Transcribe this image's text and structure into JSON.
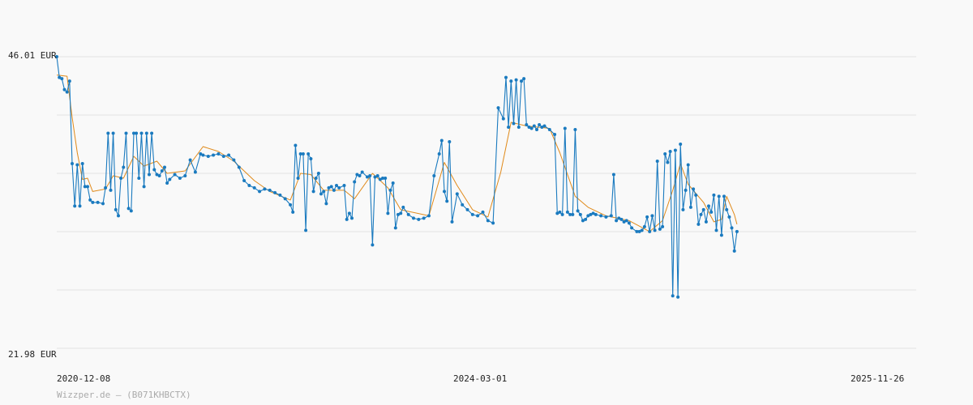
{
  "colors": {
    "background": "#f9f9f9",
    "price_line": "#1a7abf",
    "average_line": "#e08a1a",
    "grid": "#e3e3e3",
    "credit": "#aaaaaa"
  },
  "credit": "Wizzper.de – (B071KHBCTX)",
  "chart_data": {
    "type": "line",
    "title": "",
    "xlabel": "",
    "ylabel": "",
    "currency": "EUR",
    "ylim": [
      21.98,
      46.01
    ],
    "y_labels": [
      "46.01 EUR",
      "21.98 EUR"
    ],
    "x_ticks": [
      "2020-12-08",
      "2024-03-01",
      "2025-11-26"
    ],
    "x_range": [
      "2020-12-08",
      "2027-05-10"
    ],
    "grid": true,
    "legend": "none",
    "series": [
      {
        "key": "price",
        "markers": true,
        "points": [
          [
            "2020-12-08",
            46.01
          ],
          [
            "2020-12-15",
            44.3
          ],
          [
            "2020-12-22",
            44.2
          ],
          [
            "2020-12-29",
            43.3
          ],
          [
            "2021-01-05",
            43.1
          ],
          [
            "2021-01-12",
            44.0
          ],
          [
            "2021-01-19",
            37.2
          ],
          [
            "2021-01-26",
            33.7
          ],
          [
            "2021-02-02",
            37.1
          ],
          [
            "2021-02-09",
            33.7
          ],
          [
            "2021-02-16",
            37.2
          ],
          [
            "2021-02-23",
            35.3
          ],
          [
            "2021-03-02",
            35.3
          ],
          [
            "2021-03-09",
            34.2
          ],
          [
            "2021-03-16",
            34.0
          ],
          [
            "2021-03-30",
            34.0
          ],
          [
            "2021-04-13",
            33.9
          ],
          [
            "2021-04-20",
            35.2
          ],
          [
            "2021-04-27",
            39.7
          ],
          [
            "2021-05-04",
            35.0
          ],
          [
            "2021-05-11",
            39.7
          ],
          [
            "2021-05-18",
            33.4
          ],
          [
            "2021-05-25",
            32.9
          ],
          [
            "2021-06-01",
            36.0
          ],
          [
            "2021-06-08",
            36.9
          ],
          [
            "2021-06-15",
            39.7
          ],
          [
            "2021-06-22",
            33.5
          ],
          [
            "2021-06-29",
            33.3
          ],
          [
            "2021-07-06",
            39.7
          ],
          [
            "2021-07-13",
            39.7
          ],
          [
            "2021-07-20",
            36.0
          ],
          [
            "2021-07-27",
            39.7
          ],
          [
            "2021-08-03",
            35.3
          ],
          [
            "2021-08-10",
            39.7
          ],
          [
            "2021-08-17",
            36.3
          ],
          [
            "2021-08-24",
            39.7
          ],
          [
            "2021-08-31",
            36.7
          ],
          [
            "2021-09-07",
            36.3
          ],
          [
            "2021-09-14",
            36.2
          ],
          [
            "2021-09-21",
            36.6
          ],
          [
            "2021-09-28",
            36.9
          ],
          [
            "2021-10-05",
            35.6
          ],
          [
            "2021-10-12",
            35.9
          ],
          [
            "2021-10-26",
            36.3
          ],
          [
            "2021-11-09",
            36.0
          ],
          [
            "2021-11-23",
            36.2
          ],
          [
            "2021-12-07",
            37.5
          ],
          [
            "2021-12-21",
            36.5
          ],
          [
            "2022-01-04",
            38.0
          ],
          [
            "2022-01-11",
            37.9
          ],
          [
            "2022-01-25",
            37.8
          ],
          [
            "2022-02-08",
            37.9
          ],
          [
            "2022-02-22",
            38.0
          ],
          [
            "2022-03-08",
            37.8
          ],
          [
            "2022-03-22",
            37.9
          ],
          [
            "2022-04-05",
            37.5
          ],
          [
            "2022-04-19",
            36.9
          ],
          [
            "2022-05-03",
            35.8
          ],
          [
            "2022-05-17",
            35.4
          ],
          [
            "2022-05-31",
            35.2
          ],
          [
            "2022-06-14",
            34.9
          ],
          [
            "2022-06-28",
            35.1
          ],
          [
            "2022-07-12",
            35.0
          ],
          [
            "2022-07-26",
            34.8
          ],
          [
            "2022-08-09",
            34.6
          ],
          [
            "2022-08-23",
            34.3
          ],
          [
            "2022-09-06",
            33.8
          ],
          [
            "2022-09-13",
            33.2
          ],
          [
            "2022-09-20",
            38.7
          ],
          [
            "2022-09-27",
            36.0
          ],
          [
            "2022-10-04",
            38.0
          ],
          [
            "2022-10-11",
            38.0
          ],
          [
            "2022-10-18",
            31.7
          ],
          [
            "2022-10-25",
            38.0
          ],
          [
            "2022-11-01",
            37.6
          ],
          [
            "2022-11-08",
            34.9
          ],
          [
            "2022-11-15",
            36.0
          ],
          [
            "2022-11-22",
            36.4
          ],
          [
            "2022-11-29",
            34.7
          ],
          [
            "2022-12-06",
            34.9
          ],
          [
            "2022-12-13",
            33.9
          ],
          [
            "2022-12-20",
            35.2
          ],
          [
            "2022-12-27",
            35.3
          ],
          [
            "2023-01-03",
            35.0
          ],
          [
            "2023-01-10",
            35.4
          ],
          [
            "2023-01-17",
            35.2
          ],
          [
            "2023-01-31",
            35.4
          ],
          [
            "2023-02-07",
            32.6
          ],
          [
            "2023-02-14",
            33.1
          ],
          [
            "2023-02-21",
            32.7
          ],
          [
            "2023-02-28",
            35.7
          ],
          [
            "2023-03-07",
            36.3
          ],
          [
            "2023-03-14",
            36.2
          ],
          [
            "2023-03-21",
            36.5
          ],
          [
            "2023-04-04",
            36.1
          ],
          [
            "2023-04-11",
            36.2
          ],
          [
            "2023-04-18",
            30.5
          ],
          [
            "2023-04-25",
            36.1
          ],
          [
            "2023-05-02",
            36.2
          ],
          [
            "2023-05-09",
            35.9
          ],
          [
            "2023-05-16",
            36.0
          ],
          [
            "2023-05-23",
            36.0
          ],
          [
            "2023-05-30",
            33.1
          ],
          [
            "2023-06-06",
            35.0
          ],
          [
            "2023-06-13",
            35.6
          ],
          [
            "2023-06-20",
            31.9
          ],
          [
            "2023-06-27",
            33.0
          ],
          [
            "2023-07-04",
            33.1
          ],
          [
            "2023-07-11",
            33.6
          ],
          [
            "2023-07-25",
            33.0
          ],
          [
            "2023-08-08",
            32.7
          ],
          [
            "2023-08-22",
            32.6
          ],
          [
            "2023-09-05",
            32.7
          ],
          [
            "2023-09-19",
            32.9
          ],
          [
            "2023-10-03",
            36.2
          ],
          [
            "2023-10-17",
            38.0
          ],
          [
            "2023-10-24",
            39.1
          ],
          [
            "2023-10-31",
            34.9
          ],
          [
            "2023-11-07",
            34.1
          ],
          [
            "2023-11-14",
            39.0
          ],
          [
            "2023-11-21",
            32.4
          ],
          [
            "2023-12-05",
            34.7
          ],
          [
            "2023-12-19",
            33.8
          ],
          [
            "2024-01-02",
            33.4
          ],
          [
            "2024-01-16",
            33.0
          ],
          [
            "2024-01-30",
            32.9
          ],
          [
            "2024-02-13",
            33.2
          ],
          [
            "2024-02-27",
            32.5
          ],
          [
            "2024-03-12",
            32.3
          ],
          [
            "2024-03-26",
            41.8
          ],
          [
            "2024-04-09",
            40.9
          ],
          [
            "2024-04-16",
            44.3
          ],
          [
            "2024-04-23",
            40.2
          ],
          [
            "2024-04-30",
            44.0
          ],
          [
            "2024-05-07",
            40.5
          ],
          [
            "2024-05-14",
            44.1
          ],
          [
            "2024-05-21",
            40.2
          ],
          [
            "2024-05-28",
            44.0
          ],
          [
            "2024-06-04",
            44.2
          ],
          [
            "2024-06-11",
            40.4
          ],
          [
            "2024-06-18",
            40.2
          ],
          [
            "2024-06-25",
            40.1
          ],
          [
            "2024-07-02",
            40.3
          ],
          [
            "2024-07-09",
            40.0
          ],
          [
            "2024-07-16",
            40.4
          ],
          [
            "2024-07-23",
            40.2
          ],
          [
            "2024-07-30",
            40.3
          ],
          [
            "2024-08-13",
            40.0
          ],
          [
            "2024-08-27",
            39.6
          ],
          [
            "2024-09-03",
            33.1
          ],
          [
            "2024-09-10",
            33.2
          ],
          [
            "2024-09-17",
            33.0
          ],
          [
            "2024-09-24",
            40.1
          ],
          [
            "2024-10-01",
            33.2
          ],
          [
            "2024-10-08",
            33.0
          ],
          [
            "2024-10-15",
            33.0
          ],
          [
            "2024-10-22",
            40.0
          ],
          [
            "2024-10-29",
            33.3
          ],
          [
            "2024-11-05",
            33.0
          ],
          [
            "2024-11-12",
            32.5
          ],
          [
            "2024-11-19",
            32.6
          ],
          [
            "2024-11-26",
            32.9
          ],
          [
            "2024-12-03",
            33.0
          ],
          [
            "2024-12-10",
            33.1
          ],
          [
            "2024-12-17",
            33.0
          ],
          [
            "2024-12-31",
            32.9
          ],
          [
            "2025-01-14",
            32.8
          ],
          [
            "2025-01-28",
            32.9
          ],
          [
            "2025-02-04",
            36.3
          ],
          [
            "2025-02-11",
            32.5
          ],
          [
            "2025-02-18",
            32.7
          ],
          [
            "2025-02-25",
            32.6
          ],
          [
            "2025-03-04",
            32.4
          ],
          [
            "2025-03-11",
            32.5
          ],
          [
            "2025-03-18",
            32.3
          ],
          [
            "2025-03-25",
            31.9
          ],
          [
            "2025-04-08",
            31.6
          ],
          [
            "2025-04-15",
            31.6
          ],
          [
            "2025-04-22",
            31.7
          ],
          [
            "2025-04-29",
            32.0
          ],
          [
            "2025-05-06",
            32.8
          ],
          [
            "2025-05-13",
            31.6
          ],
          [
            "2025-05-20",
            32.9
          ],
          [
            "2025-05-27",
            31.7
          ],
          [
            "2025-06-03",
            37.4
          ],
          [
            "2025-06-10",
            31.8
          ],
          [
            "2025-06-17",
            32.0
          ],
          [
            "2025-06-24",
            38.0
          ],
          [
            "2025-07-01",
            37.3
          ],
          [
            "2025-07-08",
            38.2
          ],
          [
            "2025-07-15",
            26.3
          ],
          [
            "2025-07-22",
            38.3
          ],
          [
            "2025-07-29",
            26.2
          ],
          [
            "2025-08-05",
            38.8
          ],
          [
            "2025-08-12",
            33.4
          ],
          [
            "2025-08-19",
            35.0
          ],
          [
            "2025-08-26",
            37.1
          ],
          [
            "2025-09-02",
            33.6
          ],
          [
            "2025-09-09",
            35.1
          ],
          [
            "2025-09-16",
            34.6
          ],
          [
            "2025-09-23",
            32.2
          ],
          [
            "2025-09-30",
            33.0
          ],
          [
            "2025-10-07",
            33.4
          ],
          [
            "2025-10-14",
            32.4
          ],
          [
            "2025-10-21",
            33.7
          ],
          [
            "2025-10-28",
            33.2
          ],
          [
            "2025-11-04",
            34.6
          ],
          [
            "2025-11-11",
            31.7
          ],
          [
            "2025-11-18",
            34.5
          ],
          [
            "2025-11-25",
            31.3
          ],
          [
            "2025-12-02",
            34.5
          ],
          [
            "2025-12-09",
            33.4
          ],
          [
            "2025-12-16",
            32.8
          ],
          [
            "2025-12-23",
            31.9
          ],
          [
            "2025-12-30",
            30.0
          ],
          [
            "2026-01-06",
            31.6
          ]
        ]
      },
      {
        "key": "average",
        "markers": false,
        "points": [
          [
            "2020-12-08",
            44.5
          ],
          [
            "2021-01-05",
            44.4
          ],
          [
            "2021-01-19",
            41.0
          ],
          [
            "2021-02-02",
            38.1
          ],
          [
            "2021-02-16",
            35.9
          ],
          [
            "2021-03-02",
            36.0
          ],
          [
            "2021-03-16",
            34.9
          ],
          [
            "2021-04-20",
            35.1
          ],
          [
            "2021-05-11",
            36.2
          ],
          [
            "2021-06-08",
            36.0
          ],
          [
            "2021-07-06",
            37.8
          ],
          [
            "2021-08-03",
            37.0
          ],
          [
            "2021-09-07",
            37.4
          ],
          [
            "2021-10-05",
            36.4
          ],
          [
            "2021-11-23",
            36.6
          ],
          [
            "2022-01-11",
            38.6
          ],
          [
            "2022-02-22",
            38.2
          ],
          [
            "2022-04-05",
            37.4
          ],
          [
            "2022-05-31",
            35.8
          ],
          [
            "2022-07-12",
            34.9
          ],
          [
            "2022-09-06",
            34.2
          ],
          [
            "2022-10-04",
            36.4
          ],
          [
            "2022-11-01",
            36.3
          ],
          [
            "2022-12-06",
            35.0
          ],
          [
            "2023-01-31",
            35.0
          ],
          [
            "2023-02-28",
            34.3
          ],
          [
            "2023-04-18",
            36.4
          ],
          [
            "2023-05-30",
            35.2
          ],
          [
            "2023-07-04",
            33.4
          ],
          [
            "2023-09-19",
            32.9
          ],
          [
            "2023-10-31",
            37.3
          ],
          [
            "2023-12-05",
            35.4
          ],
          [
            "2024-01-16",
            33.4
          ],
          [
            "2024-02-27",
            32.8
          ],
          [
            "2024-04-02",
            36.5
          ],
          [
            "2024-04-30",
            40.6
          ],
          [
            "2024-06-11",
            40.3
          ],
          [
            "2024-08-13",
            40.1
          ],
          [
            "2024-09-10",
            38.1
          ],
          [
            "2024-10-22",
            34.5
          ],
          [
            "2024-11-26",
            33.6
          ],
          [
            "2025-01-14",
            32.9
          ],
          [
            "2025-03-18",
            32.5
          ],
          [
            "2025-05-13",
            31.6
          ],
          [
            "2025-06-17",
            32.5
          ],
          [
            "2025-07-15",
            35.0
          ],
          [
            "2025-08-05",
            37.2
          ],
          [
            "2025-08-26",
            35.5
          ],
          [
            "2025-10-07",
            34.0
          ],
          [
            "2025-11-04",
            32.4
          ],
          [
            "2025-11-25",
            32.6
          ],
          [
            "2025-12-09",
            34.5
          ],
          [
            "2025-12-30",
            33.0
          ],
          [
            "2026-01-06",
            32.2
          ]
        ]
      }
    ]
  }
}
